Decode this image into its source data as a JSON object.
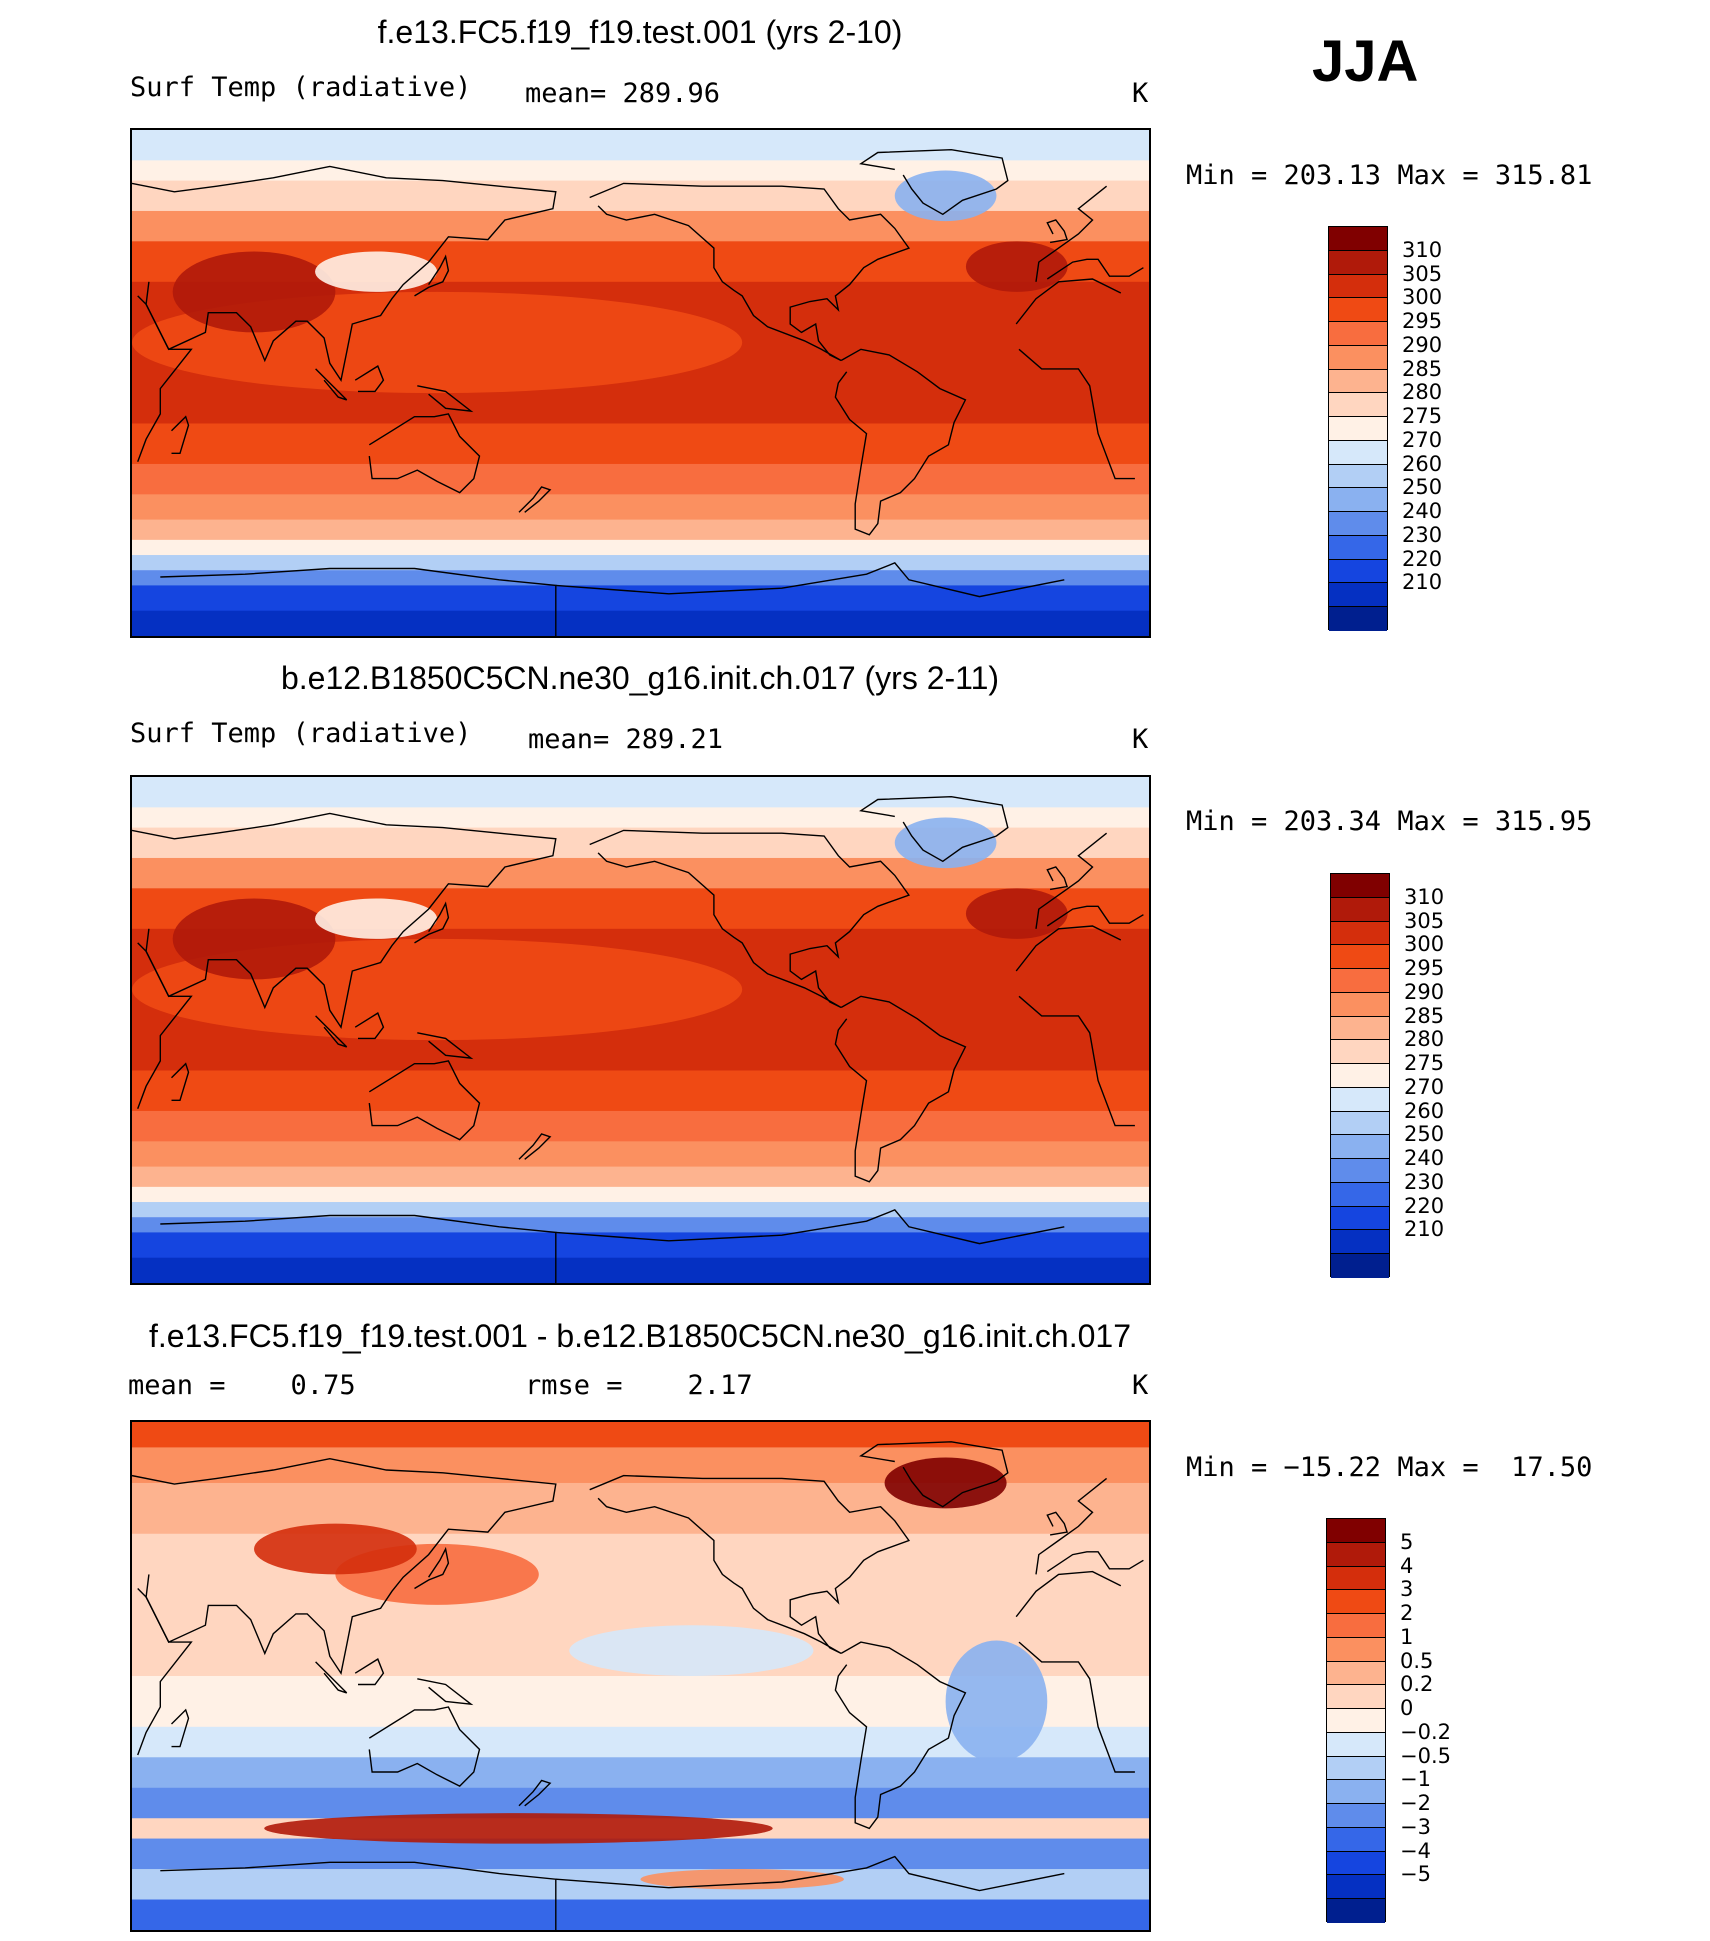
{
  "season": "JJA",
  "panels": [
    {
      "title": "f.e13.FC5.f19_f19.test.001 (yrs 2-10)",
      "left_label": "Surf Temp (radiative)",
      "mid_label": "mean= 289.96",
      "units": "K",
      "minmax": "Min = 203.13 Max = 315.81"
    },
    {
      "title": "b.e12.B1850C5CN.ne30_g16.init.ch.017 (yrs 2-11)",
      "left_label": "Surf Temp (radiative)",
      "mid_label": "mean= 289.21",
      "units": "K",
      "minmax": "Min = 203.34 Max = 315.95"
    },
    {
      "title": "f.e13.FC5.f19_f19.test.001 - b.e12.B1850C5CN.ne30_g16.init.ch.017",
      "left_label": "mean =    0.75",
      "mid_label": "rmse =    2.17",
      "units": "K",
      "minmax": "Min = −15.22 Max =  17.50"
    }
  ],
  "chart_data": [
    {
      "type": "heatmap",
      "title": "f.e13.FC5.f19_f19.test.001 (yrs 2-10)",
      "variable": "Surf Temp (radiative)",
      "units": "K",
      "mean": 289.96,
      "min": 203.13,
      "max": 315.81,
      "colorbar_levels": [
        "310",
        "305",
        "300",
        "295",
        "290",
        "285",
        "280",
        "275",
        "270",
        "260",
        "250",
        "240",
        "230",
        "220",
        "210"
      ],
      "colorbar_colors": [
        "#800000",
        "#b01a0a",
        "#d42e0c",
        "#ef4a14",
        "#f86d3f",
        "#fb9060",
        "#fdb38f",
        "#ffd6c0",
        "#fff1e6",
        "#d6e8fa",
        "#b2cff5",
        "#8ab1f0",
        "#5f8ceb",
        "#3567e8",
        "#1545e0",
        "#0530c2",
        "#001f8f"
      ]
    },
    {
      "type": "heatmap",
      "title": "b.e12.B1850C5CN.ne30_g16.init.ch.017 (yrs 2-11)",
      "variable": "Surf Temp (radiative)",
      "units": "K",
      "mean": 289.21,
      "min": 203.34,
      "max": 315.95,
      "colorbar_levels": [
        "310",
        "305",
        "300",
        "295",
        "290",
        "285",
        "280",
        "275",
        "270",
        "260",
        "250",
        "240",
        "230",
        "220",
        "210"
      ],
      "colorbar_colors": [
        "#800000",
        "#b01a0a",
        "#d42e0c",
        "#ef4a14",
        "#f86d3f",
        "#fb9060",
        "#fdb38f",
        "#ffd6c0",
        "#fff1e6",
        "#d6e8fa",
        "#b2cff5",
        "#8ab1f0",
        "#5f8ceb",
        "#3567e8",
        "#1545e0",
        "#0530c2",
        "#001f8f"
      ]
    },
    {
      "type": "heatmap",
      "title": "f.e13.FC5.f19_f19.test.001 - b.e12.B1850C5CN.ne30_g16.init.ch.017",
      "variable": "difference",
      "units": "K",
      "mean": 0.75,
      "rmse": 2.17,
      "min": -15.22,
      "max": 17.5,
      "colorbar_levels": [
        "5",
        "4",
        "3",
        "2",
        "1",
        "0.5",
        "0.2",
        "0",
        "−0.2",
        "−0.5",
        "−1",
        "−2",
        "−3",
        "−4",
        "−5"
      ],
      "colorbar_colors": [
        "#800000",
        "#b01a0a",
        "#d42e0c",
        "#ef4a14",
        "#f86d3f",
        "#fb9060",
        "#fdb38f",
        "#ffd6c0",
        "#fff1e6",
        "#d6e8fa",
        "#b2cff5",
        "#8ab1f0",
        "#5f8ceb",
        "#3567e8",
        "#1545e0",
        "#0530c2",
        "#001f8f"
      ]
    }
  ]
}
